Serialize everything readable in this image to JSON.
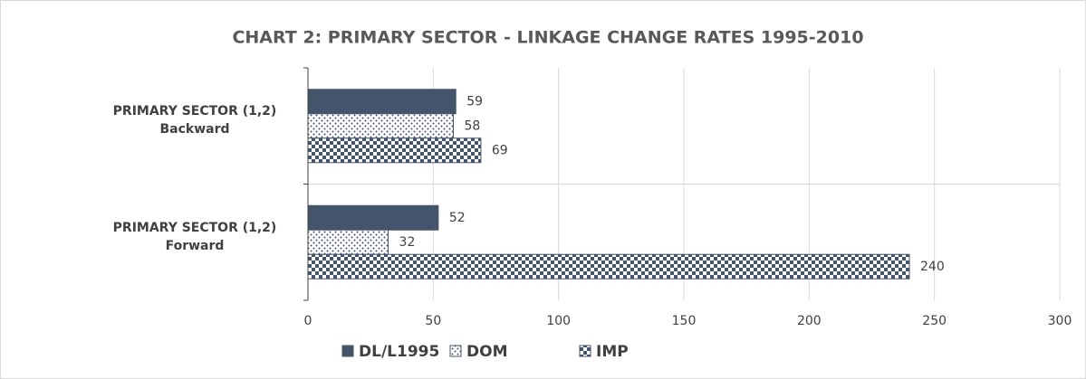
{
  "chart_data": {
    "type": "barh",
    "title": "CHART 2: PRIMARY SECTOR - LINKAGE CHANGE RATES 1995-2010",
    "categories": [
      "PRIMARY SECTOR (1,2)\nBackward",
      "PRIMARY SECTOR (1,2)\nForward"
    ],
    "series": [
      {
        "name": "DL/L1995",
        "color": "#44546a",
        "fill": "solid",
        "values": [
          59,
          52
        ]
      },
      {
        "name": "DOM",
        "color": "#44546a",
        "fill": "dots",
        "values": [
          58,
          32
        ]
      },
      {
        "name": "IMP",
        "color": "#44546a",
        "fill": "checker",
        "values": [
          69,
          240
        ]
      }
    ],
    "xlim": [
      0,
      300
    ],
    "xticks": [
      0,
      50,
      100,
      150,
      200,
      250,
      300
    ],
    "grid": true
  }
}
